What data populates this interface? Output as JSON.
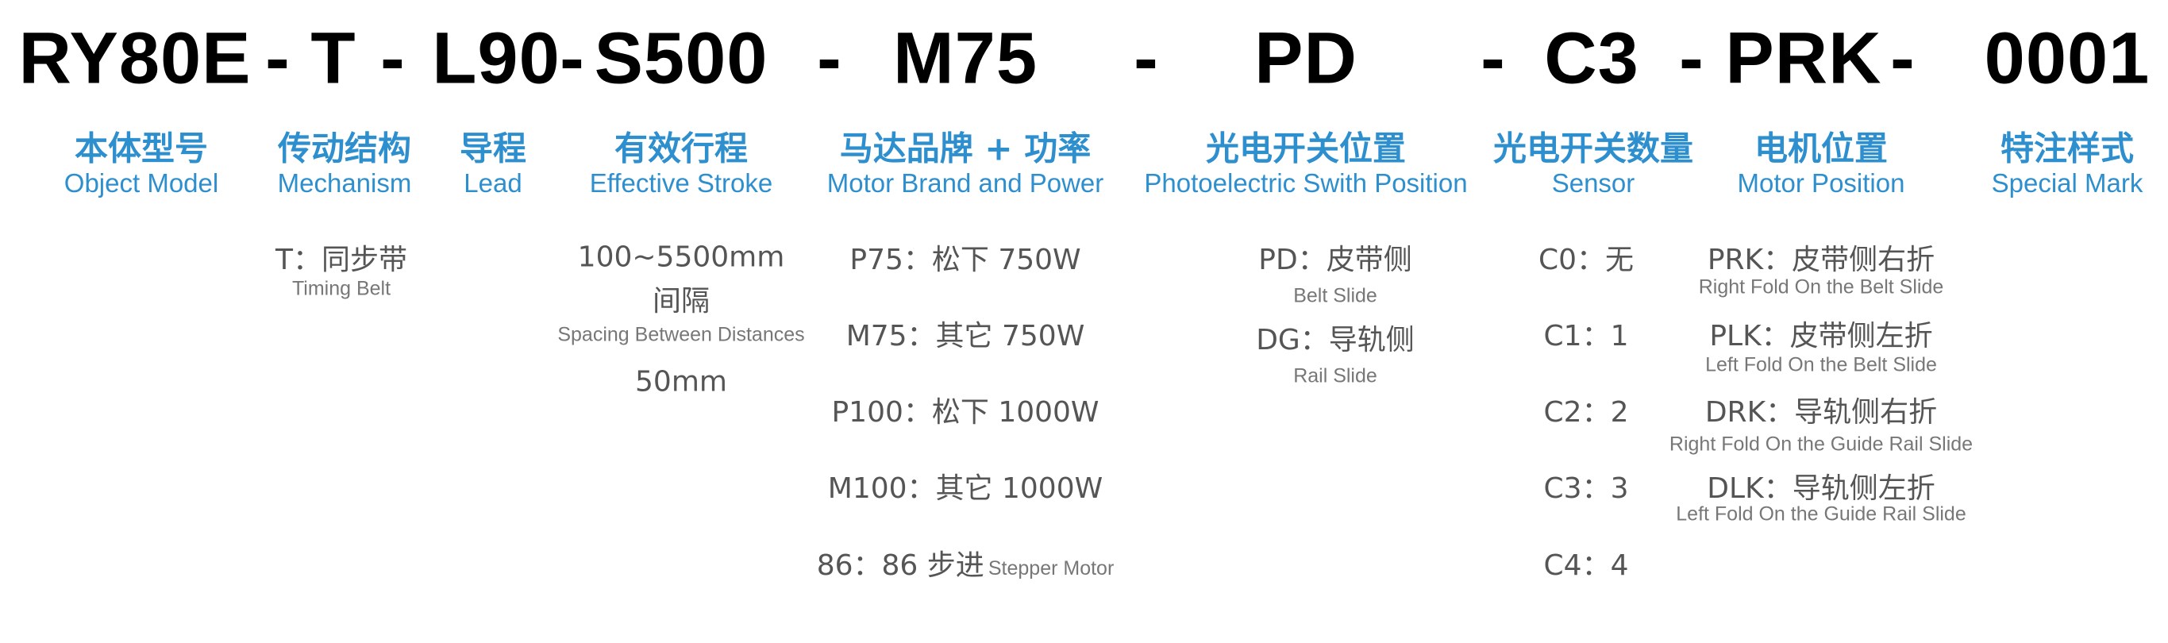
{
  "code": [
    "RY80E",
    "-",
    "T",
    "-",
    "L90",
    "-",
    "S500",
    "-",
    "M75",
    "-",
    "PD",
    "-",
    "C3",
    "-",
    "PRK",
    "-",
    "0001"
  ],
  "headers": [
    {
      "cn": "本体型号",
      "en": "Object Model"
    },
    {
      "cn": "传动结构",
      "en": "Mechanism"
    },
    {
      "cn": "导程",
      "en": "Lead"
    },
    {
      "cn": "有效行程",
      "en": "Effective Stroke"
    },
    {
      "cn": "马达品牌 + 功率",
      "en": "Motor Brand and Power"
    },
    {
      "cn": "光电开关位置",
      "en": "Photoelectric Swith Position"
    },
    {
      "cn": "光电开关数量",
      "en": "Sensor"
    },
    {
      "cn": "电机位置",
      "en": "Motor Position"
    },
    {
      "cn": "特注样式",
      "en": "Special Mark"
    }
  ],
  "mechanism": {
    "main": "T：同步带",
    "sub": "Timing Belt"
  },
  "stroke": {
    "range": "100~5500mm",
    "spacing_cn": "间隔",
    "spacing_en": "Spacing Between  Distances",
    "spacing_value": "50mm"
  },
  "motor": [
    {
      "main": "P75：松下 750W"
    },
    {
      "main": "M75：其它 750W"
    },
    {
      "main": "P100：松下 1000W"
    },
    {
      "main": "M100：其它 1000W"
    },
    {
      "main": "86：86 步进",
      "sub": "Stepper Motor"
    }
  ],
  "switch_position": [
    {
      "main": "PD：皮带侧",
      "sub": "Belt Slide"
    },
    {
      "main": "DG：导轨侧",
      "sub": "Rail Slide"
    }
  ],
  "sensor": [
    "C0：无",
    "C1：1",
    "C2：2",
    "C3：3",
    "C4：4"
  ],
  "motor_position": [
    {
      "main": "PRK：皮带侧右折",
      "sub": "Right Fold On the Belt Slide"
    },
    {
      "main": "PLK：皮带侧左折",
      "sub": "Left Fold On the Belt Slide"
    },
    {
      "main": "DRK：导轨侧右折",
      "sub": "Right Fold On the Guide Rail Slide"
    },
    {
      "main": "DLK：导轨侧左折",
      "sub": "Left Fold On the Guide Rail Slide"
    }
  ],
  "colors": {
    "accent": "#2e8fcf",
    "text": "#555555",
    "code": "#000000"
  }
}
